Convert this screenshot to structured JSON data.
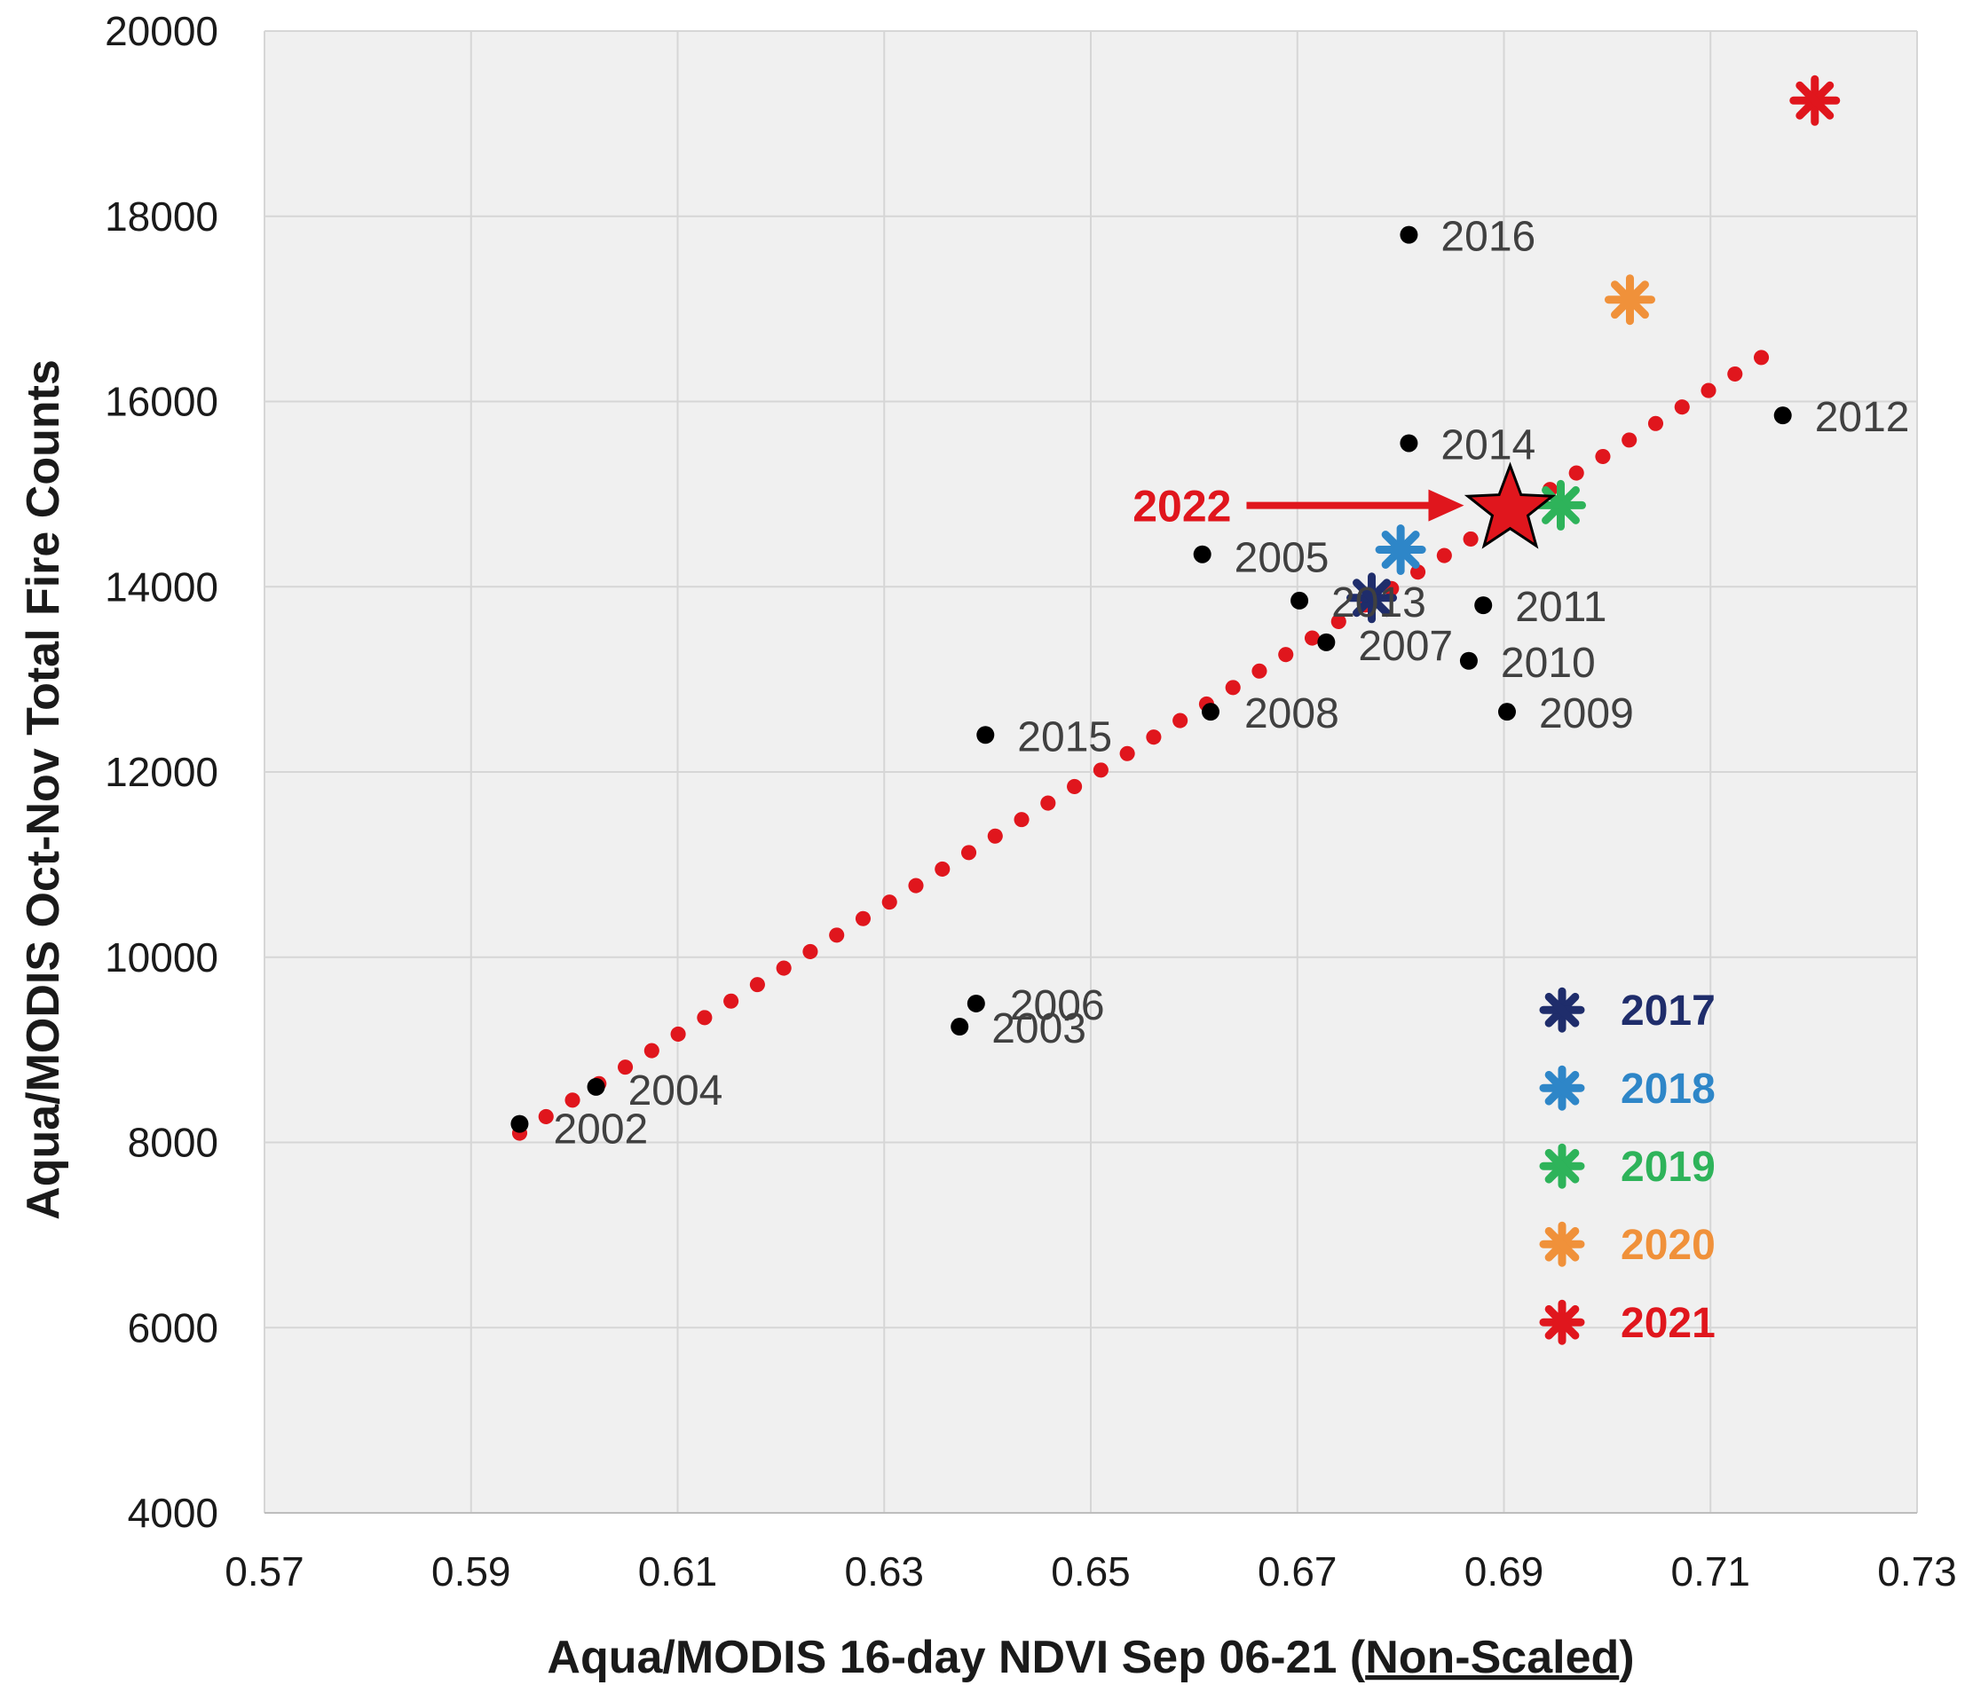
{
  "chart_data": {
    "type": "scatter",
    "xlabel_prefix": "Aqua/MODIS 16-day NDVI Sep 06-21 (",
    "xlabel_underlined": "Non-Scaled",
    "xlabel_suffix": ")",
    "ylabel": "Aqua/MODIS Oct-Nov Total Fire Counts",
    "xlim": [
      0.57,
      0.73
    ],
    "ylim": [
      4000,
      20000
    ],
    "xticks": [
      {
        "value": 0.57,
        "label": "0.57"
      },
      {
        "value": 0.59,
        "label": "0.59"
      },
      {
        "value": 0.61,
        "label": "0.61"
      },
      {
        "value": 0.63,
        "label": "0.63"
      },
      {
        "value": 0.65,
        "label": "0.65"
      },
      {
        "value": 0.67,
        "label": "0.67"
      },
      {
        "value": 0.69,
        "label": "0.69"
      },
      {
        "value": 0.71,
        "label": "0.71"
      },
      {
        "value": 0.73,
        "label": "0.73"
      }
    ],
    "yticks": [
      {
        "value": 4000,
        "label": "4000"
      },
      {
        "value": 6000,
        "label": "6000"
      },
      {
        "value": 8000,
        "label": "8000"
      },
      {
        "value": 10000,
        "label": "10000"
      },
      {
        "value": 12000,
        "label": "12000"
      },
      {
        "value": 14000,
        "label": "14000"
      },
      {
        "value": 16000,
        "label": "16000"
      },
      {
        "value": 18000,
        "label": "18000"
      },
      {
        "value": 20000,
        "label": "20000"
      }
    ],
    "grid": true,
    "series": [
      {
        "name": "2002-2016",
        "marker": "dot",
        "color": "#000000",
        "points": [
          {
            "label": "2002",
            "x": 0.5947,
            "y": 8200
          },
          {
            "label": "2003",
            "x": 0.6373,
            "y": 9250
          },
          {
            "label": "2004",
            "x": 0.6021,
            "y": 8600
          },
          {
            "label": "2005",
            "x": 0.6608,
            "y": 14350
          },
          {
            "label": "2006",
            "x": 0.6389,
            "y": 9500
          },
          {
            "label": "2007",
            "x": 0.6728,
            "y": 13400
          },
          {
            "label": "2008",
            "x": 0.6616,
            "y": 12650
          },
          {
            "label": "2009",
            "x": 0.6903,
            "y": 12650
          },
          {
            "label": "2010",
            "x": 0.6866,
            "y": 13200
          },
          {
            "label": "2011",
            "x": 0.688,
            "y": 13800
          },
          {
            "label": "2012",
            "x": 0.717,
            "y": 15850
          },
          {
            "label": "2013",
            "x": 0.6702,
            "y": 13850
          },
          {
            "label": "2014",
            "x": 0.6808,
            "y": 15550
          },
          {
            "label": "2015",
            "x": 0.6398,
            "y": 12400
          },
          {
            "label": "2016",
            "x": 0.6808,
            "y": 17800
          }
        ]
      },
      {
        "name": "2017-2021",
        "marker": "asterisk",
        "points": [
          {
            "label": "2017",
            "x": 0.6772,
            "y": 13880,
            "color": "#1f2d6b"
          },
          {
            "label": "2018",
            "x": 0.68,
            "y": 14400,
            "color": "#2e86c8"
          },
          {
            "label": "2019",
            "x": 0.6955,
            "y": 14880,
            "color": "#2eb35a"
          },
          {
            "label": "2020",
            "x": 0.7022,
            "y": 17100,
            "color": "#f0913a"
          },
          {
            "label": "2021",
            "x": 0.7201,
            "y": 19250,
            "color": "#e0161d"
          }
        ]
      },
      {
        "name": "2022",
        "marker": "star",
        "color": "#e0161d",
        "points": [
          {
            "label": "2022",
            "x": 0.6906,
            "y": 14830
          }
        ]
      }
    ],
    "trendline": {
      "style": "dotted",
      "color": "#e0161d",
      "x": [
        0.5947,
        0.717
      ],
      "y": [
        8100,
        16620
      ]
    },
    "annotations": [
      {
        "text": "2022",
        "color": "#e0161d",
        "arrow_to": "2022"
      }
    ],
    "legend": {
      "placement": "bottom-right",
      "entries": [
        {
          "label": "2017",
          "color": "#1f2d6b"
        },
        {
          "label": "2018",
          "color": "#2e86c8"
        },
        {
          "label": "2019",
          "color": "#2eb35a"
        },
        {
          "label": "2020",
          "color": "#f0913a"
        },
        {
          "label": "2021",
          "color": "#e0161d"
        }
      ]
    }
  }
}
